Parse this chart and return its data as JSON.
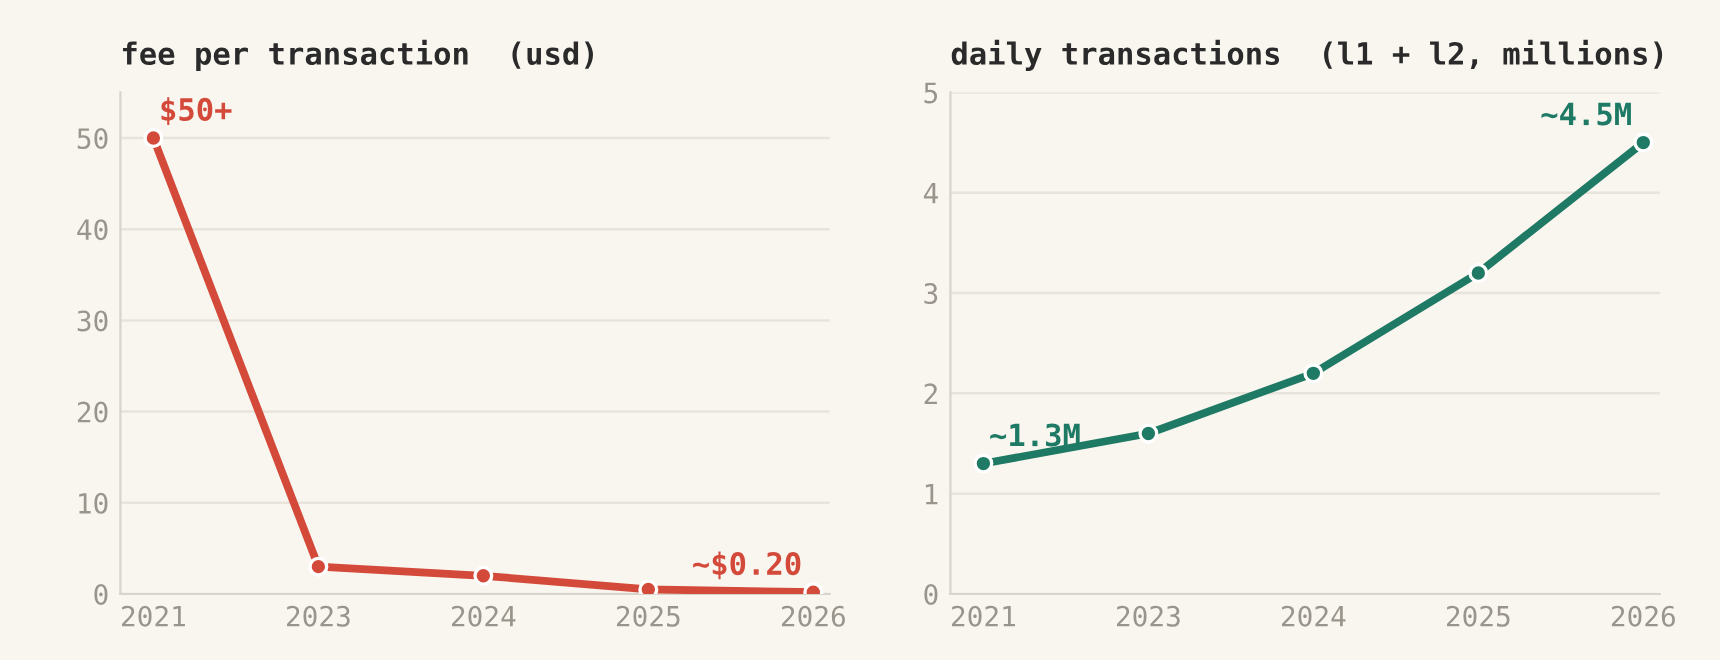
{
  "chart_data": [
    {
      "type": "line",
      "title": "fee per transaction  (usd)",
      "categories": [
        "2021",
        "2023",
        "2024",
        "2025",
        "2026"
      ],
      "series": [
        {
          "color": "#d44a3a",
          "values": [
            50,
            3,
            2,
            0.5,
            0.2
          ]
        }
      ],
      "ylim": [
        0,
        55
      ],
      "yticks": [
        0,
        10,
        20,
        30,
        40,
        50
      ],
      "grid": "y",
      "marker": "circle",
      "line_style": "solid",
      "annotations": [
        {
          "text": "$50+",
          "x": "2021",
          "y": 50
        },
        {
          "text": "~$0.20",
          "x": "2026",
          "y": 0.2
        }
      ]
    },
    {
      "type": "line",
      "title": "daily transactions  (l1 + l2, millions)",
      "categories": [
        "2021",
        "2023",
        "2024",
        "2025",
        "2026"
      ],
      "series": [
        {
          "color": "#1e7a65",
          "values": [
            1.3,
            1.6,
            2.2,
            3.2,
            4.5
          ]
        }
      ],
      "ylim": [
        0,
        5
      ],
      "yticks": [
        0,
        1,
        2,
        3,
        4,
        5
      ],
      "grid": "y",
      "marker": "circle",
      "line_style": "solid",
      "annotations": [
        {
          "text": "~1.3M",
          "x": "2021",
          "y": 1.3
        },
        {
          "text": "~4.5M",
          "x": "2026",
          "y": 4.5
        }
      ]
    }
  ]
}
